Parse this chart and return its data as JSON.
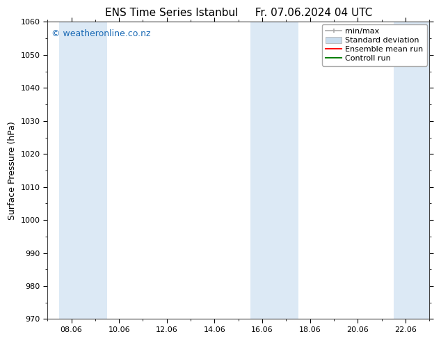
{
  "title_left": "ENS Time Series Istanbul",
  "title_right": "Fr. 07.06.2024 04 UTC",
  "ylabel": "Surface Pressure (hPa)",
  "ylim": [
    970,
    1060
  ],
  "yticks": [
    970,
    980,
    990,
    1000,
    1010,
    1020,
    1030,
    1040,
    1050,
    1060
  ],
  "x_min": 0,
  "x_max": 16,
  "xtick_labels": [
    "08.06",
    "10.06",
    "12.06",
    "14.06",
    "16.06",
    "18.06",
    "20.06",
    "22.06"
  ],
  "xtick_positions": [
    1,
    3,
    5,
    7,
    9,
    11,
    13,
    15
  ],
  "background_color": "#ffffff",
  "plot_bg_color": "#ffffff",
  "shaded_ranges": [
    [
      0.5,
      2.5
    ],
    [
      8.5,
      10.5
    ],
    [
      14.5,
      16
    ]
  ],
  "shaded_color": "#dce9f5",
  "watermark_text": "© weatheronline.co.nz",
  "watermark_color": "#1a6ab5",
  "watermark_fontsize": 9,
  "legend_labels": [
    "min/max",
    "Standard deviation",
    "Ensemble mean run",
    "Controll run"
  ],
  "legend_colors": [
    "#aaaaaa",
    "#c8dced",
    "#ff0000",
    "#008000"
  ],
  "title_fontsize": 11,
  "ylabel_fontsize": 9,
  "tick_fontsize": 8,
  "legend_fontsize": 8
}
